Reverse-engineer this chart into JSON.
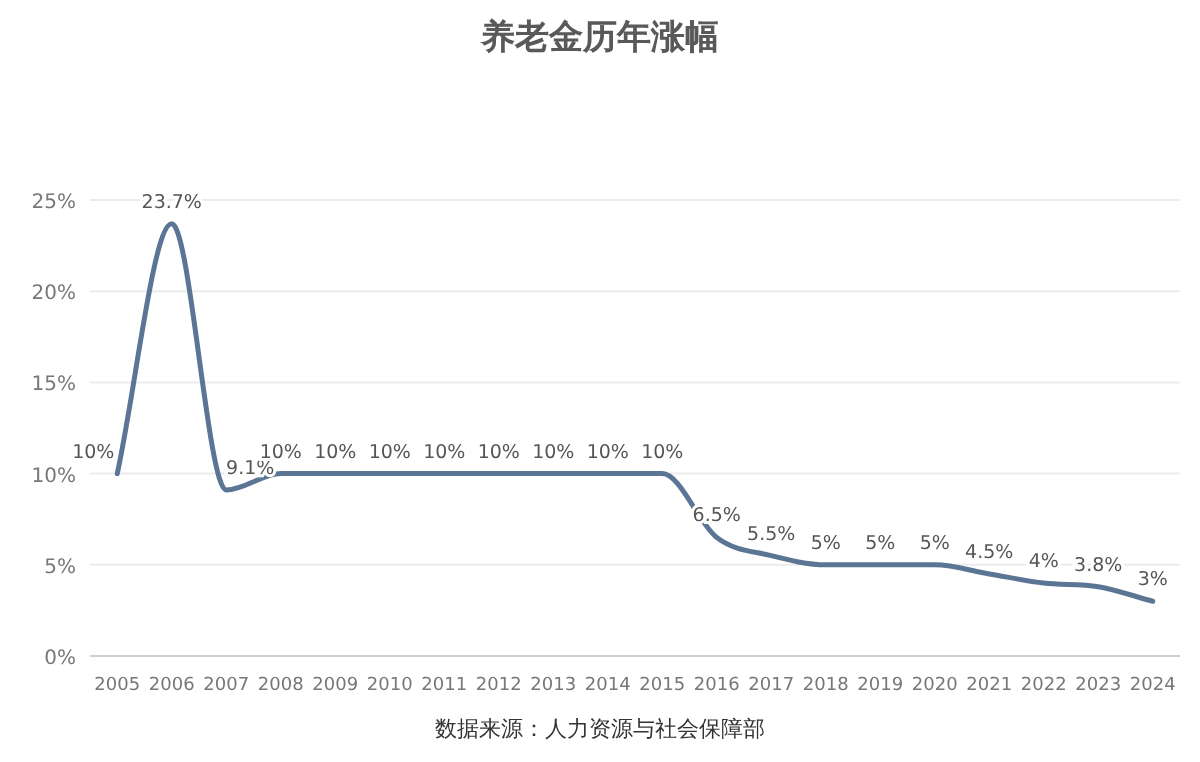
{
  "chart_data": {
    "type": "line",
    "title": "养老金历年涨幅",
    "categories": [
      "2005",
      "2006",
      "2007",
      "2008",
      "2009",
      "2010",
      "2011",
      "2012",
      "2013",
      "2014",
      "2015",
      "2016",
      "2017",
      "2018",
      "2019",
      "2020",
      "2021",
      "2022",
      "2023",
      "2024"
    ],
    "series": [
      {
        "color": "#5b7595",
        "values": [
          10,
          23.7,
          9.1,
          10,
          10,
          10,
          10,
          10,
          10,
          10,
          10,
          6.5,
          5.5,
          5,
          5,
          5,
          4.5,
          4,
          3.8,
          3
        ]
      }
    ],
    "value_labels": [
      "10%",
      "23.7%",
      "9.1%",
      "10%",
      "10%",
      "10%",
      "10%",
      "10%",
      "10%",
      "10%",
      "10%",
      "6.5%",
      "5.5%",
      "5%",
      "5%",
      "5%",
      "4.5%",
      "4%",
      "3.8%",
      "3%"
    ],
    "ylim": [
      0,
      25
    ],
    "yticks": [
      {
        "value": 0,
        "label": "0%"
      },
      {
        "value": 5,
        "label": "5%"
      },
      {
        "value": 10,
        "label": "10%"
      },
      {
        "value": 15,
        "label": "15%"
      },
      {
        "value": 20,
        "label": "20%"
      },
      {
        "value": 25,
        "label": "25%"
      }
    ],
    "grid": "y",
    "marker": "none",
    "line_style": "solid",
    "annotations": [
      "数据来源：人力资源与社会保障部"
    ]
  }
}
